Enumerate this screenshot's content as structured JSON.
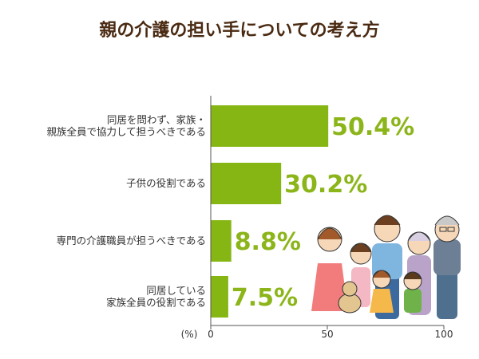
{
  "chart_data": {
    "type": "bar",
    "orientation": "horizontal",
    "title": "親の介護の担い手についての考え方",
    "unit_label": "(%)",
    "categories": [
      [
        "同居を問わず、家族・",
        "親族全員で協力して担うべきである"
      ],
      [
        "子供の役割である"
      ],
      [
        "専門の介護職員が担うべきである"
      ],
      [
        "同居している",
        "家族全員の役割である"
      ]
    ],
    "values": [
      50.4,
      30.2,
      8.8,
      7.5
    ],
    "value_labels": [
      "50.4%",
      "30.2%",
      "8.8%",
      "7.5%"
    ],
    "xlim": [
      0,
      100
    ],
    "ticks": [
      0,
      50,
      100
    ],
    "tick_labels": [
      "0",
      "50",
      "100"
    ],
    "grid": false,
    "legend": "none",
    "colors": {
      "bar": "#86b614",
      "value_text": "#8cb51a",
      "title": "#4a2a12",
      "axis": "#555555"
    }
  },
  "illustration": {
    "name": "family-illustration"
  }
}
